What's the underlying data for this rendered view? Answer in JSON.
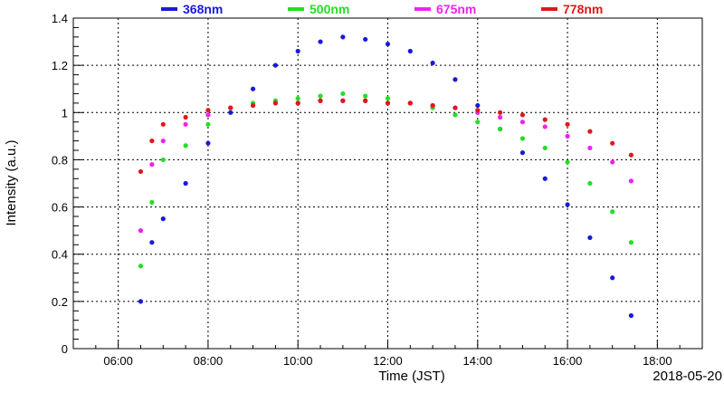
{
  "chart_data": {
    "type": "scatter",
    "title": "",
    "xlabel": "Time (JST)",
    "ylabel": "Intensity (a.u.)",
    "date_label": "2018-05-20",
    "xlim": [
      "05:00",
      "19:00"
    ],
    "ylim": [
      0,
      1.4
    ],
    "x_ticks": [
      "06:00",
      "08:00",
      "10:00",
      "12:00",
      "14:00",
      "16:00",
      "18:00"
    ],
    "y_ticks": [
      "0",
      "0.2",
      "0.4",
      "0.6",
      "0.8",
      "1",
      "1.2",
      "1.4"
    ],
    "grid": true,
    "legend_position": "top",
    "series": [
      {
        "name": "368nm",
        "color": "#1a1adb",
        "points": [
          [
            "06:30",
            0.2
          ],
          [
            "06:45",
            0.45
          ],
          [
            "07:00",
            0.55
          ],
          [
            "07:30",
            0.7
          ],
          [
            "08:00",
            0.87
          ],
          [
            "08:30",
            1.0
          ],
          [
            "09:00",
            1.1
          ],
          [
            "09:30",
            1.2
          ],
          [
            "10:00",
            1.26
          ],
          [
            "10:30",
            1.3
          ],
          [
            "11:00",
            1.32
          ],
          [
            "11:30",
            1.31
          ],
          [
            "12:00",
            1.29
          ],
          [
            "12:30",
            1.26
          ],
          [
            "13:00",
            1.21
          ],
          [
            "13:30",
            1.14
          ],
          [
            "14:00",
            1.03
          ],
          [
            "14:30",
            0.93
          ],
          [
            "15:00",
            0.83
          ],
          [
            "15:30",
            0.72
          ],
          [
            "16:00",
            0.61
          ],
          [
            "16:30",
            0.47
          ],
          [
            "17:00",
            0.3
          ],
          [
            "17:25",
            0.14
          ]
        ]
      },
      {
        "name": "500nm",
        "color": "#22e022",
        "points": [
          [
            "06:30",
            0.35
          ],
          [
            "06:45",
            0.62
          ],
          [
            "07:00",
            0.8
          ],
          [
            "07:30",
            0.86
          ],
          [
            "08:00",
            0.95
          ],
          [
            "08:30",
            1.02
          ],
          [
            "09:00",
            1.04
          ],
          [
            "09:30",
            1.05
          ],
          [
            "10:00",
            1.06
          ],
          [
            "10:30",
            1.07
          ],
          [
            "11:00",
            1.08
          ],
          [
            "11:30",
            1.07
          ],
          [
            "12:00",
            1.06
          ],
          [
            "12:30",
            1.04
          ],
          [
            "13:00",
            1.02
          ],
          [
            "13:30",
            0.99
          ],
          [
            "14:00",
            0.96
          ],
          [
            "14:30",
            0.93
          ],
          [
            "15:00",
            0.89
          ],
          [
            "15:30",
            0.85
          ],
          [
            "16:00",
            0.79
          ],
          [
            "16:30",
            0.7
          ],
          [
            "17:00",
            0.58
          ],
          [
            "17:25",
            0.45
          ]
        ]
      },
      {
        "name": "675nm",
        "color": "#f022f0",
        "points": [
          [
            "06:30",
            0.5
          ],
          [
            "06:45",
            0.78
          ],
          [
            "07:00",
            0.88
          ],
          [
            "07:30",
            0.95
          ],
          [
            "08:00",
            0.99
          ],
          [
            "08:30",
            1.02
          ],
          [
            "09:00",
            1.03
          ],
          [
            "09:30",
            1.04
          ],
          [
            "10:00",
            1.04
          ],
          [
            "10:30",
            1.05
          ],
          [
            "11:00",
            1.05
          ],
          [
            "11:30",
            1.05
          ],
          [
            "12:00",
            1.04
          ],
          [
            "12:30",
            1.04
          ],
          [
            "13:00",
            1.03
          ],
          [
            "13:30",
            1.02
          ],
          [
            "14:00",
            1.0
          ],
          [
            "14:30",
            0.98
          ],
          [
            "15:00",
            0.96
          ],
          [
            "15:30",
            0.94
          ],
          [
            "16:00",
            0.9
          ],
          [
            "16:30",
            0.85
          ],
          [
            "17:00",
            0.79
          ],
          [
            "17:25",
            0.71
          ]
        ]
      },
      {
        "name": "778nm",
        "color": "#e01818",
        "points": [
          [
            "06:30",
            0.75
          ],
          [
            "06:45",
            0.88
          ],
          [
            "07:00",
            0.95
          ],
          [
            "07:30",
            0.98
          ],
          [
            "08:00",
            1.01
          ],
          [
            "08:30",
            1.02
          ],
          [
            "09:00",
            1.03
          ],
          [
            "09:30",
            1.04
          ],
          [
            "10:00",
            1.04
          ],
          [
            "10:30",
            1.05
          ],
          [
            "11:00",
            1.05
          ],
          [
            "11:30",
            1.05
          ],
          [
            "12:00",
            1.04
          ],
          [
            "12:30",
            1.04
          ],
          [
            "13:00",
            1.03
          ],
          [
            "13:30",
            1.02
          ],
          [
            "14:00",
            1.01
          ],
          [
            "14:30",
            1.0
          ],
          [
            "15:00",
            0.99
          ],
          [
            "15:30",
            0.97
          ],
          [
            "16:00",
            0.95
          ],
          [
            "16:30",
            0.92
          ],
          [
            "17:00",
            0.87
          ],
          [
            "17:25",
            0.82
          ]
        ]
      }
    ]
  }
}
